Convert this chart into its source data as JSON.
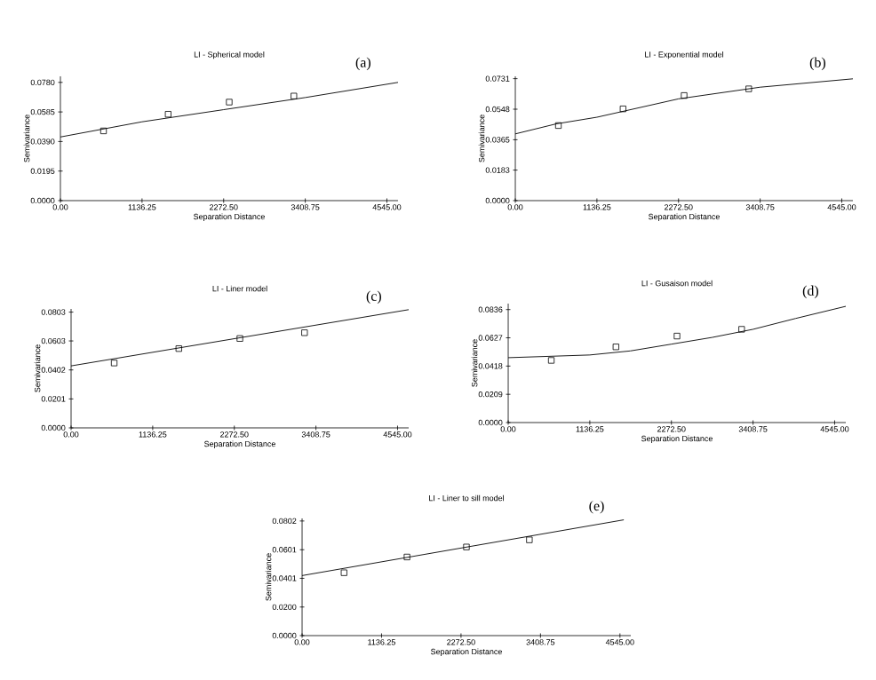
{
  "chart_data": [
    {
      "type": "scatter",
      "title": "LI - Spherical model",
      "xlabel": "Separation Distance",
      "ylabel": "Semivariance",
      "annotations": [
        "(a)"
      ],
      "xlim": [
        0,
        4700
      ],
      "ylim": [
        0,
        0.082
      ],
      "xticks": [
        {
          "value": 0,
          "label": "0.00"
        },
        {
          "value": 1136.25,
          "label": "1136.25"
        },
        {
          "value": 2272.5,
          "label": "2272.50"
        },
        {
          "value": 3408.75,
          "label": "3408.75"
        },
        {
          "value": 4545,
          "label": "4545.00"
        }
      ],
      "yticks": [
        {
          "value": 0,
          "label": "0.0000"
        },
        {
          "value": 0.0195,
          "label": "0.0195"
        },
        {
          "value": 0.039,
          "label": "0.0390"
        },
        {
          "value": 0.0585,
          "label": "0.0585"
        },
        {
          "value": 0.078,
          "label": "0.0780"
        }
      ],
      "series": [
        {
          "marker": "square",
          "color": "#000000",
          "x": [
            600,
            1500,
            2350,
            3250
          ],
          "values": [
            0.046,
            0.057,
            0.065,
            0.069
          ]
        },
        {
          "type": "line",
          "marker": "none",
          "color": "#000000",
          "x": [
            0,
            1136,
            2272,
            3409,
            4700
          ],
          "values": [
            0.042,
            0.052,
            0.06,
            0.068,
            0.078
          ]
        }
      ]
    },
    {
      "type": "scatter",
      "title": "LI - Exponential model",
      "xlabel": "Separation Distance",
      "ylabel": "Semivariance",
      "annotations": [
        "(b)"
      ],
      "xlim": [
        0,
        4700
      ],
      "ylim": [
        0,
        0.0745
      ],
      "xticks": [
        {
          "value": 0,
          "label": "0.00"
        },
        {
          "value": 1136.25,
          "label": "1136.25"
        },
        {
          "value": 2272.5,
          "label": "2272.50"
        },
        {
          "value": 3408.75,
          "label": "3408.75"
        },
        {
          "value": 4545,
          "label": "4545.00"
        }
      ],
      "yticks": [
        {
          "value": 0,
          "label": "0.0000"
        },
        {
          "value": 0.0183,
          "label": "0.0183"
        },
        {
          "value": 0.0365,
          "label": "0.0365"
        },
        {
          "value": 0.0548,
          "label": "0.0548"
        },
        {
          "value": 0.0731,
          "label": "0.0731"
        }
      ],
      "series": [
        {
          "marker": "square",
          "color": "#000000",
          "x": [
            600,
            1500,
            2350,
            3250
          ],
          "values": [
            0.045,
            0.055,
            0.063,
            0.067
          ]
        },
        {
          "type": "line",
          "marker": "none",
          "color": "#000000",
          "x": [
            0,
            568,
            1136,
            2272,
            3409,
            4700
          ],
          "values": [
            0.04,
            0.046,
            0.05,
            0.061,
            0.068,
            0.073
          ]
        }
      ]
    },
    {
      "type": "scatter",
      "title": "LI - Liner model",
      "xlabel": "Separation Distance",
      "ylabel": "Semivariance",
      "annotations": [
        "(c)"
      ],
      "xlim": [
        0,
        4700
      ],
      "ylim": [
        0,
        0.0825
      ],
      "xticks": [
        {
          "value": 0,
          "label": "0.00"
        },
        {
          "value": 1136.25,
          "label": "1136.25"
        },
        {
          "value": 2272.5,
          "label": "2272.50"
        },
        {
          "value": 3408.75,
          "label": "3408.75"
        },
        {
          "value": 4545,
          "label": "4545.00"
        }
      ],
      "yticks": [
        {
          "value": 0,
          "label": "0.0000"
        },
        {
          "value": 0.0201,
          "label": "0.0201"
        },
        {
          "value": 0.0402,
          "label": "0.0402"
        },
        {
          "value": 0.0603,
          "label": "0.0603"
        },
        {
          "value": 0.0803,
          "label": "0.0803"
        }
      ],
      "series": [
        {
          "marker": "square",
          "color": "#000000",
          "x": [
            600,
            1500,
            2350,
            3250
          ],
          "values": [
            0.045,
            0.055,
            0.062,
            0.066
          ]
        },
        {
          "type": "line",
          "marker": "none",
          "color": "#000000",
          "x": [
            0,
            4700
          ],
          "values": [
            0.043,
            0.082
          ]
        }
      ]
    },
    {
      "type": "scatter",
      "title": "LI - Gusaison model",
      "xlabel": "Separation Distance",
      "ylabel": "Semivariance",
      "annotations": [
        "(d)"
      ],
      "xlim": [
        0,
        4700
      ],
      "ylim": [
        0,
        0.088
      ],
      "xticks": [
        {
          "value": 0,
          "label": "0.00"
        },
        {
          "value": 1136.25,
          "label": "1136.25"
        },
        {
          "value": 2272.5,
          "label": "2272.50"
        },
        {
          "value": 3408.75,
          "label": "3408.75"
        },
        {
          "value": 4545,
          "label": "4545.00"
        }
      ],
      "yticks": [
        {
          "value": 0,
          "label": "0.0000"
        },
        {
          "value": 0.0209,
          "label": "0.0209"
        },
        {
          "value": 0.0418,
          "label": "0.0418"
        },
        {
          "value": 0.0627,
          "label": "0.0627"
        },
        {
          "value": 0.0836,
          "label": "0.0836"
        }
      ],
      "series": [
        {
          "marker": "square",
          "color": "#000000",
          "x": [
            600,
            1500,
            2350,
            3250
          ],
          "values": [
            0.046,
            0.056,
            0.064,
            0.069
          ]
        },
        {
          "type": "line",
          "marker": "none",
          "color": "#000000",
          "x": [
            0,
            568,
            1136,
            1700,
            2272,
            2840,
            3409,
            4000,
            4700
          ],
          "values": [
            0.048,
            0.049,
            0.05,
            0.053,
            0.058,
            0.063,
            0.069,
            0.077,
            0.086
          ]
        }
      ]
    },
    {
      "type": "scatter",
      "title": "LI - Liner to sill model",
      "xlabel": "Separation Distance",
      "ylabel": "Semivariance",
      "annotations": [
        "(e)"
      ],
      "xlim": [
        0,
        4700
      ],
      "ylim": [
        0,
        0.082
      ],
      "xticks": [
        {
          "value": 0,
          "label": "0.00"
        },
        {
          "value": 1136.25,
          "label": "1136.25"
        },
        {
          "value": 2272.5,
          "label": "2272.50"
        },
        {
          "value": 3408.75,
          "label": "3408.75"
        },
        {
          "value": 4545,
          "label": "4545.00"
        }
      ],
      "yticks": [
        {
          "value": 0,
          "label": "0.0000"
        },
        {
          "value": 0.02,
          "label": "0.0200"
        },
        {
          "value": 0.0401,
          "label": "0.0401"
        },
        {
          "value": 0.0601,
          "label": "0.0601"
        },
        {
          "value": 0.0802,
          "label": "0.0802"
        }
      ],
      "series": [
        {
          "marker": "square",
          "color": "#000000",
          "x": [
            600,
            1500,
            2350,
            3250
          ],
          "values": [
            0.044,
            0.055,
            0.062,
            0.067
          ]
        },
        {
          "type": "line",
          "marker": "none",
          "color": "#000000",
          "x": [
            0,
            4600
          ],
          "values": [
            0.042,
            0.081
          ]
        }
      ]
    }
  ]
}
